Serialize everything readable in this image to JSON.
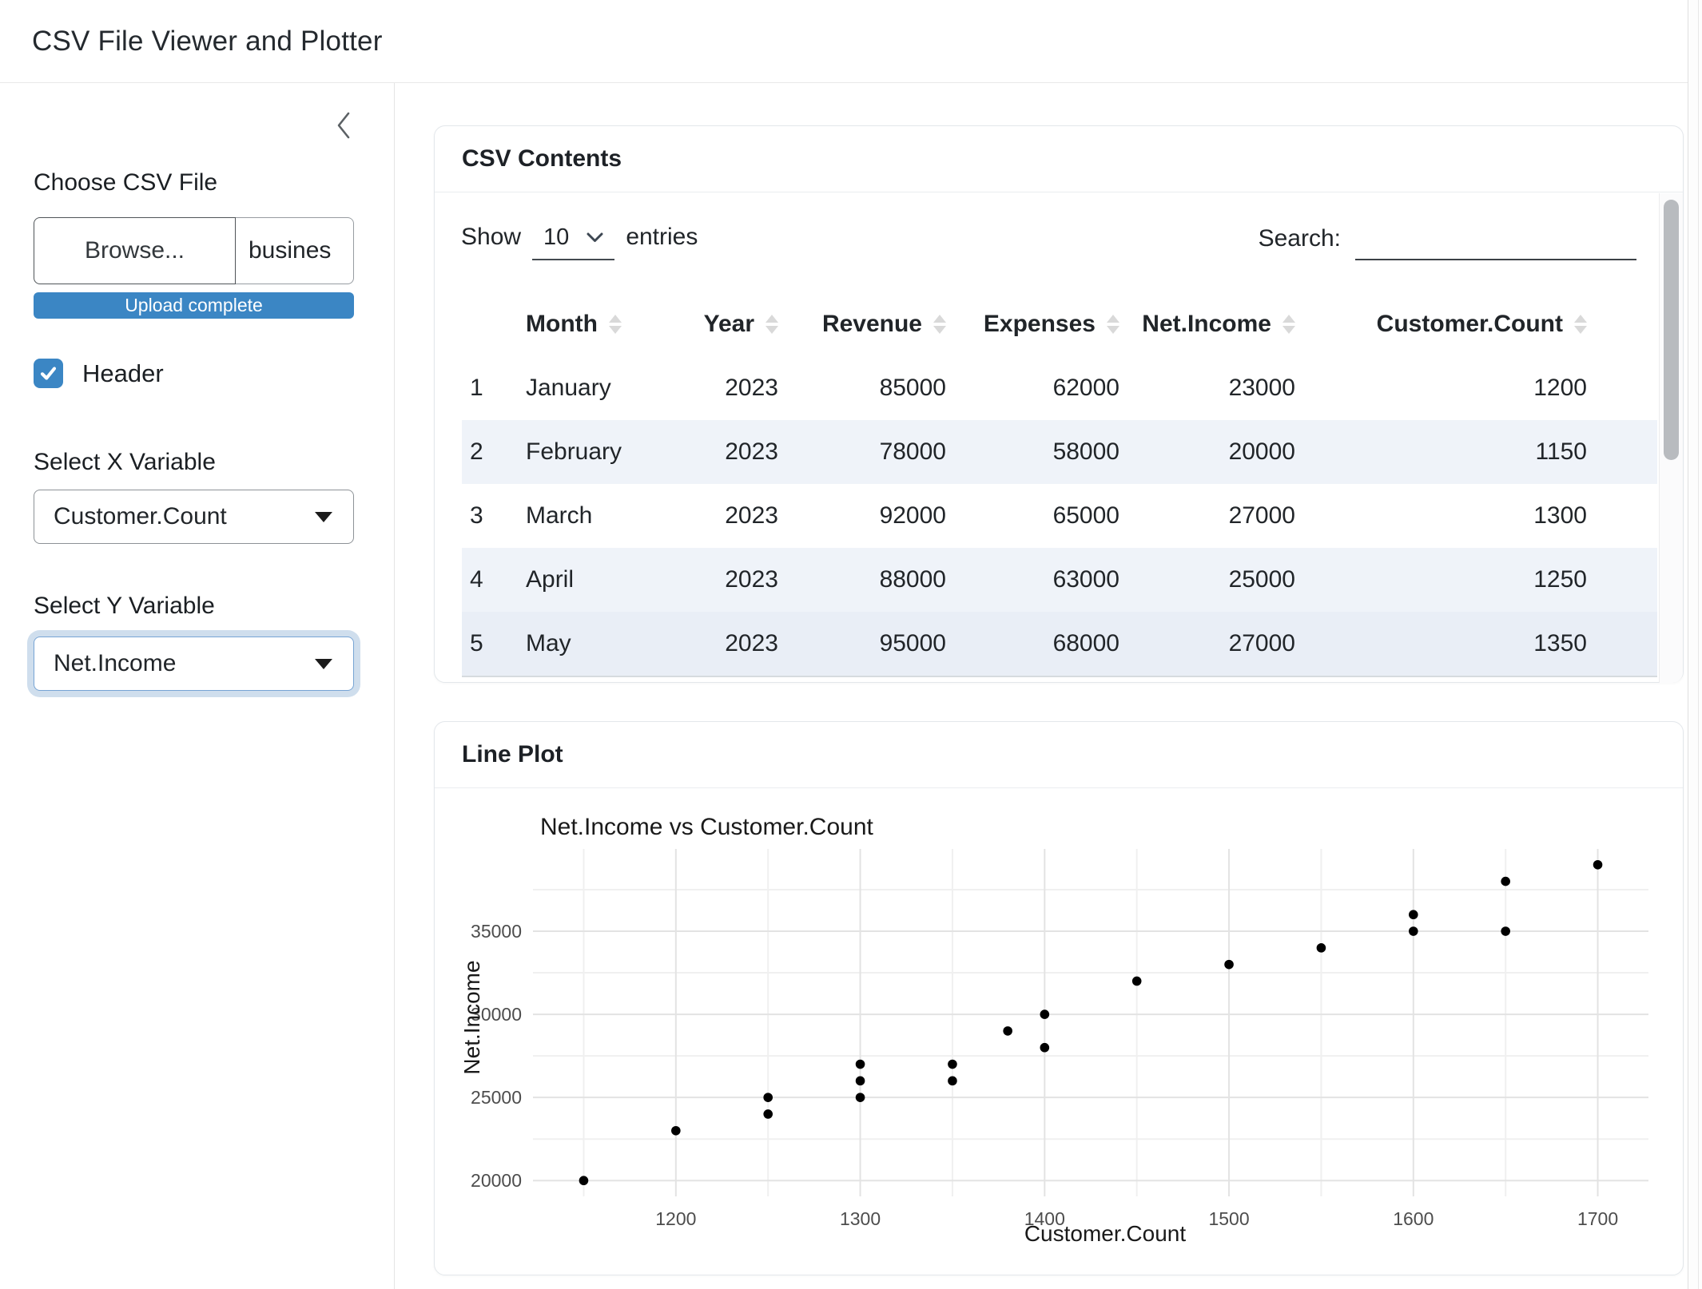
{
  "app": {
    "title": "CSV File Viewer and Plotter"
  },
  "colors": {
    "primary": "#3b86c4",
    "stripe": "#eff3f9",
    "focus_ring": "rgba(82,136,190,0.28)"
  },
  "icons": {
    "sidebar_collapse": "chevron-left",
    "select_caret": "caret-down",
    "length_select_caret": "chevron-down",
    "column_sort": "sort-arrows",
    "checkbox_check": "checkmark"
  },
  "sidebar": {
    "file_input": {
      "label": "Choose CSV File",
      "browse_label": "Browse...",
      "filename": "busines",
      "progress_text": "Upload complete"
    },
    "header_checkbox": {
      "label": "Header",
      "checked": true
    },
    "x_select": {
      "label": "Select X Variable",
      "value": "Customer.Count"
    },
    "y_select": {
      "label": "Select Y Variable",
      "value": "Net.Income"
    }
  },
  "csv_card": {
    "title": "CSV Contents",
    "length": {
      "prefix": "Show",
      "value": "10",
      "suffix": "entries"
    },
    "search": {
      "label": "Search:",
      "value": ""
    },
    "columns": [
      "",
      "Month",
      "Year",
      "Revenue",
      "Expenses",
      "Net.Income",
      "Customer.Count"
    ],
    "rows": [
      [
        "1",
        "January",
        "2023",
        "85000",
        "62000",
        "23000",
        "1200"
      ],
      [
        "2",
        "February",
        "2023",
        "78000",
        "58000",
        "20000",
        "1150"
      ],
      [
        "3",
        "March",
        "2023",
        "92000",
        "65000",
        "27000",
        "1300"
      ],
      [
        "4",
        "April",
        "2023",
        "88000",
        "63000",
        "25000",
        "1250"
      ],
      [
        "5",
        "May",
        "2023",
        "95000",
        "68000",
        "27000",
        "1350"
      ]
    ]
  },
  "plot_card": {
    "title": "Line Plot"
  },
  "chart_data": {
    "type": "scatter",
    "title": "Net.Income vs Customer.Count",
    "xlabel": "Customer.Count",
    "ylabel": "Net.Income",
    "points": [
      [
        1150,
        20000
      ],
      [
        1200,
        23000
      ],
      [
        1250,
        24000
      ],
      [
        1250,
        25000
      ],
      [
        1300,
        25000
      ],
      [
        1300,
        26000
      ],
      [
        1300,
        27000
      ],
      [
        1350,
        26000
      ],
      [
        1350,
        27000
      ],
      [
        1380,
        29000
      ],
      [
        1400,
        28000
      ],
      [
        1400,
        30000
      ],
      [
        1450,
        32000
      ],
      [
        1500,
        33000
      ],
      [
        1550,
        34000
      ],
      [
        1600,
        35000
      ],
      [
        1600,
        36000
      ],
      [
        1650,
        35000
      ],
      [
        1650,
        38000
      ],
      [
        1700,
        39000
      ]
    ],
    "x_ticks": [
      1200,
      1300,
      1400,
      1500,
      1600,
      1700
    ],
    "x_minor_ticks": [
      1150,
      1250,
      1350,
      1450,
      1550,
      1650
    ],
    "y_ticks": [
      20000,
      25000,
      30000,
      35000
    ],
    "y_minor_ticks": [
      22500,
      27500,
      32500,
      37500
    ],
    "xlim": [
      1122.5,
      1727.5
    ],
    "ylim": [
      19050,
      39950
    ],
    "grid": true,
    "legend": false,
    "point_color": "#000000",
    "grid_major_color": "#e3e3e3",
    "grid_minor_color": "#f0f0f0",
    "tick_label_color": "#4d4d4d",
    "axis_title_color": "#1a1a1a"
  }
}
